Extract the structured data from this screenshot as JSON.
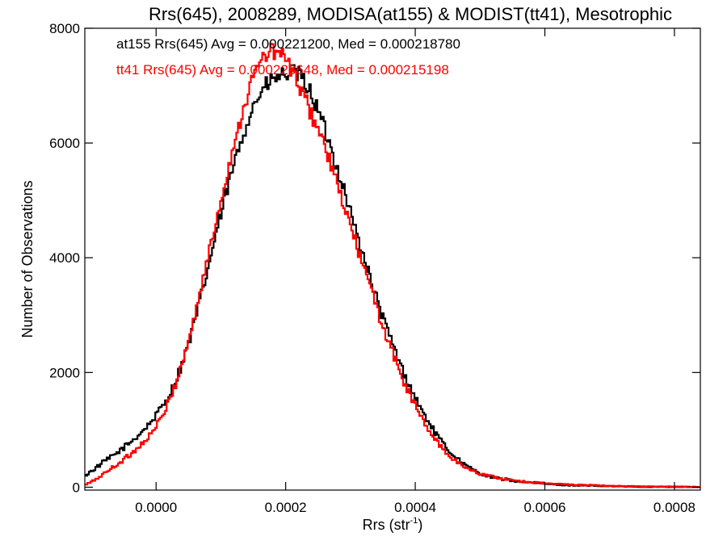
{
  "chart_data": {
    "type": "line",
    "style": "histogram-step",
    "title": "Rrs(645), 2008289, MODISA(at155) & MODIST(tt41), Mesotrophic",
    "xlabel": "Rrs (str",
    "xlabel_sup": "-1",
    "xlabel_close": ")",
    "ylabel": "Number of Observations",
    "xlim": [
      -0.00011,
      0.00084
    ],
    "ylim": [
      -50,
      8000
    ],
    "x_ticks": [
      0.0,
      0.0002,
      0.0004,
      0.0006,
      0.0008
    ],
    "x_tick_labels": [
      "0.0000",
      "0.0002",
      "0.0004",
      "0.0006",
      "0.0008"
    ],
    "y_ticks": [
      0,
      2000,
      4000,
      6000,
      8000
    ],
    "y_tick_labels": [
      "0",
      "2000",
      "4000",
      "6000",
      "8000"
    ],
    "grid": false,
    "legend_position": "top-left",
    "series": [
      {
        "name": "at155",
        "label": "at155 Rrs(645) Avg = 0.000221200, Med = 0.000218780",
        "color": "#000000",
        "x": [
          -0.00011,
          -0.0001,
          -9e-05,
          -8e-05,
          -7e-05,
          -6e-05,
          -5e-05,
          -4e-05,
          -3e-05,
          -2e-05,
          -1e-05,
          0.0,
          1e-05,
          2e-05,
          3e-05,
          4e-05,
          5e-05,
          6e-05,
          7e-05,
          8e-05,
          9e-05,
          0.0001,
          0.00011,
          0.00012,
          0.00013,
          0.00014,
          0.00015,
          0.00016,
          0.00017,
          0.00018,
          0.00019,
          0.0002,
          0.00021,
          0.00022,
          0.00023,
          0.00024,
          0.00025,
          0.00026,
          0.00027,
          0.00028,
          0.00029,
          0.0003,
          0.00031,
          0.00032,
          0.00033,
          0.00034,
          0.00035,
          0.00036,
          0.00037,
          0.00038,
          0.00039,
          0.0004,
          0.00041,
          0.00042,
          0.00043,
          0.00044,
          0.00045,
          0.00046,
          0.00047,
          0.00048,
          0.00049,
          0.0005,
          0.00052,
          0.00054,
          0.00056,
          0.00058,
          0.0006,
          0.00062,
          0.00064,
          0.00066,
          0.00068,
          0.0007,
          0.00072,
          0.00074,
          0.00076,
          0.00078,
          0.0008,
          0.00082,
          0.00084
        ],
        "y": [
          200,
          280,
          360,
          450,
          520,
          600,
          690,
          780,
          880,
          990,
          1110,
          1250,
          1420,
          1600,
          1850,
          2150,
          2500,
          2900,
          3350,
          3800,
          4300,
          4750,
          5200,
          5600,
          6000,
          6350,
          6650,
          6850,
          7000,
          7100,
          7150,
          7200,
          7230,
          7180,
          7050,
          6850,
          6550,
          6250,
          5900,
          5550,
          5200,
          4800,
          4400,
          4050,
          3650,
          3300,
          2950,
          2650,
          2350,
          2050,
          1800,
          1560,
          1340,
          1150,
          960,
          800,
          660,
          550,
          450,
          360,
          300,
          240,
          170,
          130,
          100,
          80,
          60,
          45,
          35,
          28,
          22,
          18,
          14,
          11,
          9,
          7,
          6,
          5,
          4
        ]
      },
      {
        "name": "tt41",
        "label": "tt41 Rrs(645) Avg = 0.000223648, Med = 0.000215198",
        "color": "#ff0000",
        "x": [
          -0.00011,
          -0.0001,
          -9e-05,
          -8e-05,
          -7e-05,
          -6e-05,
          -5e-05,
          -4e-05,
          -3e-05,
          -2e-05,
          -1e-05,
          0.0,
          1e-05,
          2e-05,
          3e-05,
          4e-05,
          5e-05,
          6e-05,
          7e-05,
          8e-05,
          9e-05,
          0.0001,
          0.00011,
          0.00012,
          0.00013,
          0.00014,
          0.00015,
          0.00016,
          0.00017,
          0.00018,
          0.00019,
          0.0002,
          0.00021,
          0.00022,
          0.00023,
          0.00024,
          0.00025,
          0.00026,
          0.00027,
          0.00028,
          0.00029,
          0.0003,
          0.00031,
          0.00032,
          0.00033,
          0.00034,
          0.00035,
          0.00036,
          0.00037,
          0.00038,
          0.00039,
          0.0004,
          0.00041,
          0.00042,
          0.00043,
          0.00044,
          0.00045,
          0.00046,
          0.00047,
          0.00048,
          0.00049,
          0.0005,
          0.00052,
          0.00054,
          0.00056,
          0.00058,
          0.0006,
          0.00062,
          0.00064,
          0.00066,
          0.00068,
          0.0007,
          0.00072,
          0.00074,
          0.00076,
          0.00078,
          0.0008,
          0.00082,
          0.00084
        ],
        "y": [
          40,
          90,
          160,
          240,
          320,
          400,
          480,
          570,
          670,
          780,
          900,
          1050,
          1250,
          1500,
          1800,
          2150,
          2550,
          3000,
          3500,
          4000,
          4500,
          5000,
          5500,
          5950,
          6400,
          6800,
          7150,
          7400,
          7550,
          7600,
          7580,
          7450,
          7250,
          7000,
          6750,
          6500,
          6250,
          5950,
          5600,
          5250,
          4900,
          4550,
          4200,
          3850,
          3500,
          3150,
          2800,
          2500,
          2200,
          1900,
          1650,
          1420,
          1200,
          1010,
          840,
          700,
          580,
          480,
          400,
          330,
          280,
          240,
          180,
          140,
          110,
          85,
          68,
          55,
          45,
          37,
          30,
          24,
          18,
          14,
          11,
          8,
          6,
          5,
          4
        ]
      }
    ]
  }
}
